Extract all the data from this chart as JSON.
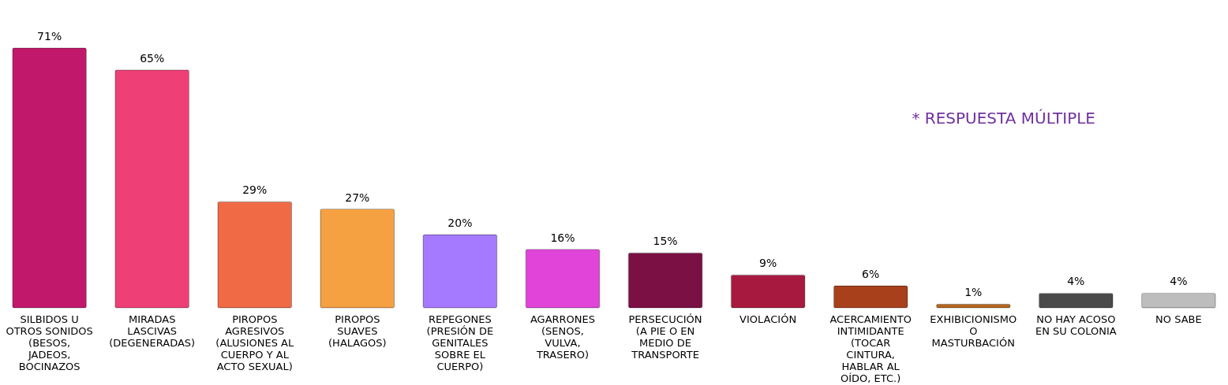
{
  "chart_data": {
    "type": "bar",
    "categories": [
      "SILBIDOS U OTROS SONIDOS (BESOS, JADEOS, BOCINAZOS",
      "MIRADAS LASCIVAS (DEGENERADAS)",
      "PIROPOS AGRESIVOS (ALUSIONES AL CUERPO Y AL ACTO SEXUAL)",
      "PIROPOS SUAVES (HALAGOS)",
      "REPEGONES (PRESIÓN DE GENITALES SOBRE EL CUERPO)",
      "AGARRONES (SENOS, VULVA, TRASERO)",
      "PERSECUCIÓN (A PIE O EN MEDIO DE TRANSPORTE",
      "VIOLACIÓN",
      "ACERCAMIENTO INTIMIDANTE (TOCAR CINTURA, HABLAR AL OÍDO, ETC.)",
      "EXHIBICIONISMO O MASTURBACIÓN",
      "NO HAY ACOSO EN SU COLONIA",
      "NO SABE"
    ],
    "values": [
      71,
      65,
      29,
      27,
      20,
      16,
      15,
      9,
      6,
      1,
      4,
      4
    ],
    "value_labels": [
      "71%",
      "65%",
      "29%",
      "27%",
      "20%",
      "16%",
      "15%",
      "9%",
      "6%",
      "1%",
      "4%",
      "4%"
    ],
    "colors": [
      "#c2186b",
      "#ee4077",
      "#ef6a45",
      "#f5a142",
      "#a57aff",
      "#e044d8",
      "#7b1045",
      "#a8193f",
      "#a8401c",
      "#b5651d",
      "#4a4a4a",
      "#bdbdbd"
    ],
    "annotations": [
      "* RESPUESTA MÚLTIPLE"
    ],
    "grid": false,
    "legend": false
  }
}
